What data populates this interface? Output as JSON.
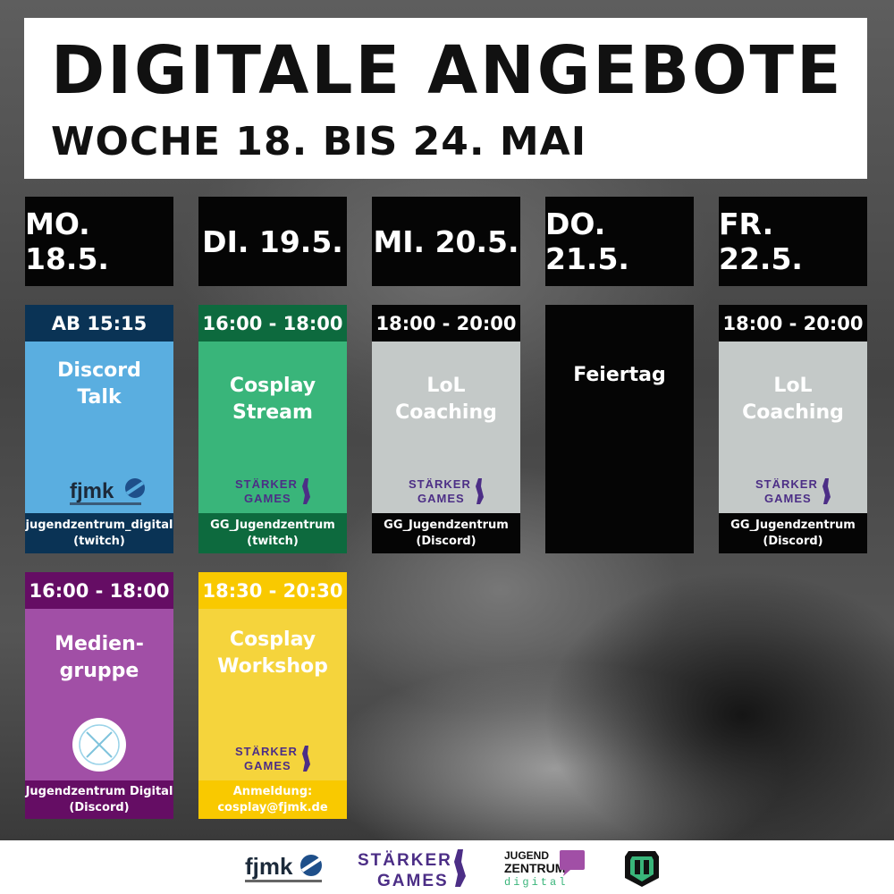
{
  "header": {
    "title": "DIGITALE ANGEBOTE",
    "subtitle": "WOCHE 18. BIS 24. MAI"
  },
  "days": [
    "MO. 18.5.",
    "DI. 19.5.",
    "MI. 20.5.",
    "DO. 21.5.",
    "FR. 22.5."
  ],
  "cards": {
    "mo1": {
      "time": "AB 15:15",
      "label": "Discord\nTalk",
      "footer": "jugendzentrum_digital\n(twitch)",
      "logo": "fjmk-logo"
    },
    "di1": {
      "time": "16:00 - 18:00",
      "label": "Cosplay\nStream",
      "footer": "GG_Jugendzentrum\n(twitch)",
      "logo": "starker-games-logo"
    },
    "mi1": {
      "time": "18:00 - 20:00",
      "label": "LoL\nCoaching",
      "footer": "GG_Jugendzentrum\n(Discord)",
      "logo": "starker-games-logo"
    },
    "do1": {
      "label": "Feiertag"
    },
    "fr1": {
      "time": "18:00 - 20:00",
      "label": "LoL\nCoaching",
      "footer": "GG_Jugendzentrum\n(Discord)",
      "logo": "starker-games-logo"
    },
    "mo2": {
      "time": "16:00 - 18:00",
      "label": "Medien-\ngruppe",
      "footer": "Jugendzentrum Digital\n(Discord)",
      "logo": "mediengruppe-circle-logo"
    },
    "di2": {
      "time": "18:30 - 20:30",
      "label": "Cosplay\nWorkshop",
      "footer": "Anmeldung:\ncosplay@fjmk.de",
      "logo": "starker-games-logo"
    }
  },
  "colors": {
    "discord_head": "#0a3355",
    "discord_body": "#5aaee0",
    "green_head": "#0d6a3e",
    "green_body": "#39b57a",
    "grey_head": "#050505",
    "grey_body": "#c4c9c8",
    "black": "#050505",
    "purple_head": "#650d64",
    "purple_body": "#a14fa6",
    "yellow_head": "#f9c900",
    "yellow_body": "#f5d43c",
    "starker_purple": "#4c2e86"
  },
  "logos": {
    "fjmk": "fjmk",
    "starker_top": "STÄRKER",
    "starker_bottom": "GAMES",
    "jz_top": "JUGEND",
    "jz_mid": "ZENTRUM",
    "jz_bottom": "digital"
  }
}
